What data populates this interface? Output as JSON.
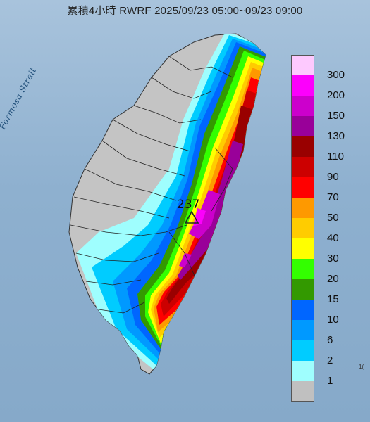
{
  "title": "累積4小時 RWRF 2025/09/23 05:00~09/23 09:00",
  "map": {
    "sea_label": "Formosa Strait",
    "peak_value": "237",
    "edge_text": "1("
  },
  "legend": {
    "thresholds": [
      "300",
      "200",
      "150",
      "130",
      "110",
      "90",
      "70",
      "50",
      "40",
      "30",
      "20",
      "15",
      "10",
      "6",
      "2",
      "1"
    ],
    "colors": [
      "#fdc9fe",
      "#fc00fc",
      "#cc00cc",
      "#990099",
      "#990000",
      "#cc0000",
      "#ff0000",
      "#fe9900",
      "#ffcc00",
      "#ffff00",
      "#33ff00",
      "#339900",
      "#0066ff",
      "#0099ff",
      "#00ccff",
      "#9ffefe",
      "#c0c0c0"
    ]
  }
}
